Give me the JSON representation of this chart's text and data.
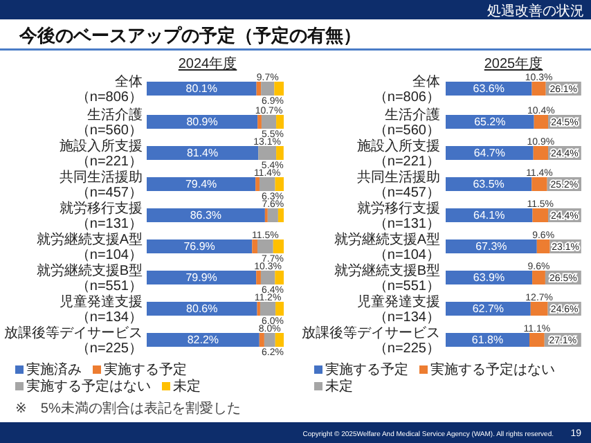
{
  "chart_data": [
    {
      "type": "other",
      "title": "今後のベースアップの予定（予定の有無）",
      "annotations": [
        "処遇改善の状況",
        "Copyright © 2025Welfare And Medical Service Agency (WAM). All rights reserved.",
        "19"
      ]
    },
    {
      "type": "bar",
      "orientation": "horizontal",
      "stacked": true,
      "title": "2024年度",
      "legend": "bottom",
      "categories": [
        "全体（n=806）",
        "生活介護（n=560）",
        "施設入所支援（n=221）",
        "共同生活援助（n=457）",
        "就労移行支援（n=131）",
        "就労継続支援A型（n=104）",
        "就労継続支援B型（n=551）",
        "児童発達支援（n=134）",
        "放課後等デイサービス（n=225）"
      ],
      "series": [
        {
          "name": "実施済み",
          "color": "#4472c4",
          "values": [
            80.1,
            80.9,
            81.4,
            79.4,
            86.3,
            76.9,
            79.9,
            80.6,
            82.2
          ],
          "value_labels": [
            "80.1%",
            "80.9%",
            "81.4%",
            "79.4%",
            "86.3%",
            "76.9%",
            "79.9%",
            "80.6%",
            "82.2%"
          ]
        },
        {
          "name": "実施する予定",
          "color": "#ed7d31",
          "values": [
            3.3,
            2.9,
            null,
            2.9,
            2.0,
            3.9,
            3.4,
            2.2,
            3.6
          ]
        },
        {
          "name": "実施する予定はない",
          "color": "#a5a5a5",
          "values": [
            9.7,
            10.7,
            13.1,
            11.4,
            7.6,
            11.5,
            10.3,
            11.2,
            8.0
          ],
          "value_labels": [
            "9.7%",
            "10.7%",
            "13.1%",
            "11.4%",
            "7.6%",
            "11.5%",
            "10.3%",
            "11.2%",
            "8.0%"
          ]
        },
        {
          "name": "未定",
          "color": "#ffc000",
          "values": [
            6.9,
            5.5,
            5.4,
            6.3,
            4.1,
            7.7,
            6.4,
            6.0,
            6.2
          ],
          "value_labels": [
            "6.9%",
            "5.5%",
            "5.4%",
            "6.3%",
            null,
            "7.7%",
            "6.4%",
            "6.0%",
            "6.2%"
          ]
        }
      ],
      "annotations": [
        "※　5%未満の割合は表記を割愛した"
      ]
    },
    {
      "type": "bar",
      "orientation": "horizontal",
      "stacked": true,
      "title": "2025年度",
      "legend": "bottom",
      "categories": [
        "全体（n=806）",
        "生活介護（n=560）",
        "施設入所支援（n=221）",
        "共同生活援助（n=457）",
        "就労移行支援（n=131）",
        "就労継続支援A型（n=104）",
        "就労継続支援B型（n=551）",
        "児童発達支援（n=134）",
        "放課後等デイサービス（n=225）"
      ],
      "series": [
        {
          "name": "実施する予定",
          "color": "#4472c4",
          "values": [
            63.6,
            65.2,
            64.7,
            63.5,
            64.1,
            67.3,
            63.9,
            62.7,
            61.8
          ],
          "value_labels": [
            "63.6%",
            "65.2%",
            "64.7%",
            "63.5%",
            "64.1%",
            "67.3%",
            "63.9%",
            "62.7%",
            "61.8%"
          ]
        },
        {
          "name": "実施する予定はない",
          "color": "#ed7d31",
          "values": [
            10.3,
            10.4,
            10.9,
            11.4,
            11.5,
            9.6,
            9.6,
            12.7,
            11.1
          ],
          "value_labels": [
            "10.3%",
            "10.4%",
            "10.9%",
            "11.4%",
            "11.5%",
            "9.6%",
            "9.6%",
            "12.7%",
            "11.1%"
          ]
        },
        {
          "name": "未定",
          "color": "#a5a5a5",
          "values": [
            26.1,
            24.5,
            24.4,
            25.2,
            24.4,
            23.1,
            26.5,
            24.6,
            27.1
          ],
          "value_labels": [
            "26.1%",
            "24.5%",
            "24.4%",
            "25.2%",
            "24.4%",
            "23.1%",
            "26.5%",
            "24.6%",
            "27.1%"
          ]
        }
      ]
    }
  ]
}
